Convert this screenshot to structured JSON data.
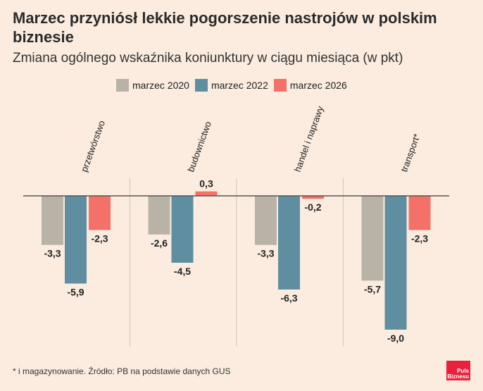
{
  "title": "Marzec przyniósł lekkie pogorszenie nastrojów w polskim biznesie",
  "subtitle": "Zmiana ogólnego wskaźnika koniunktury w ciągu miesiąca (w pkt)",
  "footnote": "* i magazynowanie. Źródło: PB na podstawie danych GUS",
  "logo": {
    "line1": "Puls",
    "line2": "Biznesu"
  },
  "colors": {
    "background": "#fbecdf",
    "series": [
      "#b8b3a6",
      "#5e8ea0",
      "#f47169"
    ],
    "axis": "#555555",
    "separator": "#cfc6bc"
  },
  "chart_data": {
    "type": "bar",
    "categories": [
      "przetwórstwo",
      "budownictwo",
      "handel i naprawy",
      "transport*"
    ],
    "series": [
      {
        "name": "marzec 2020",
        "values": [
          -3.3,
          -2.6,
          -3.3,
          -5.7
        ],
        "labels": [
          "-3,3",
          "-2,6",
          "-3,3",
          "-5,7"
        ]
      },
      {
        "name": "marzec 2022",
        "values": [
          -5.9,
          -4.5,
          -6.3,
          -9.0
        ],
        "labels": [
          "-5,9",
          "-4,5",
          "-6,3",
          "-9,0"
        ]
      },
      {
        "name": "marzec 2026",
        "values": [
          -2.3,
          0.3,
          -0.2,
          -2.3
        ],
        "labels": [
          "-2,3",
          "0,3",
          "-0,2",
          "-2,3"
        ]
      }
    ],
    "xlabel": "",
    "ylabel": "",
    "grid": false,
    "legend": "top"
  }
}
